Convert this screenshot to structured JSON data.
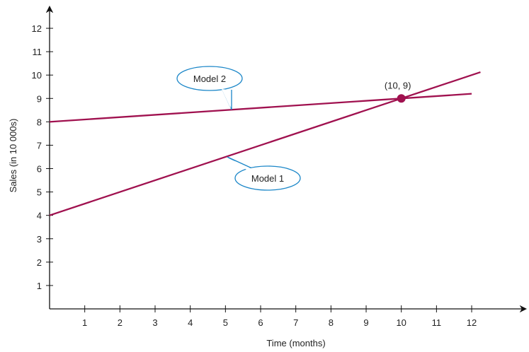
{
  "chart_data": {
    "type": "line",
    "title": "",
    "xlabel": "Time (months)",
    "ylabel": "Sales (in 10 000s)",
    "xlim": [
      0,
      13.5
    ],
    "ylim": [
      0,
      13
    ],
    "x_ticks": [
      1,
      2,
      3,
      4,
      5,
      6,
      7,
      8,
      9,
      10,
      11,
      12
    ],
    "y_ticks": [
      1,
      2,
      3,
      4,
      5,
      6,
      7,
      8,
      9,
      10,
      11,
      12
    ],
    "grid": false,
    "series": [
      {
        "name": "Model 1",
        "x": [
          0,
          12.25
        ],
        "y": [
          4,
          10.125
        ],
        "color": "#a0114f"
      },
      {
        "name": "Model 2",
        "x": [
          0,
          12
        ],
        "y": [
          8,
          9.2
        ],
        "color": "#a0114f"
      }
    ],
    "annotations": [
      {
        "text": "(10, 9)",
        "x": 10,
        "y": 9,
        "marker_color": "#a0114f"
      }
    ],
    "callout_color": "#1a86c8"
  }
}
